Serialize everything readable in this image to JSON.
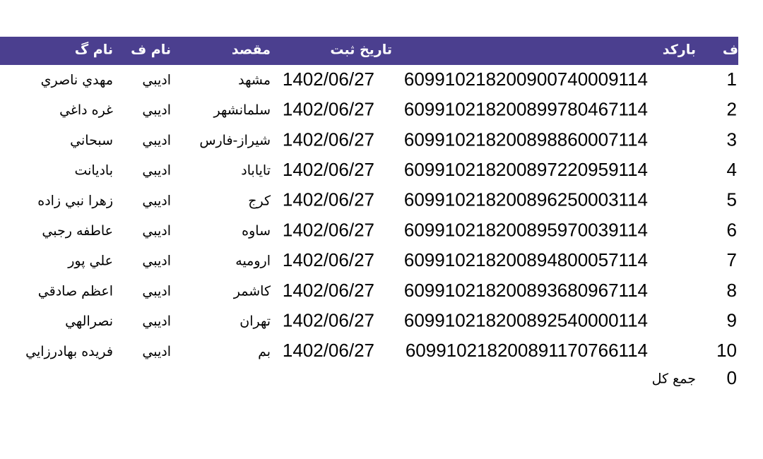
{
  "table": {
    "headers": [
      "ف",
      "بارکد",
      "تاريخ ثبت",
      "مقصد",
      "نام ف",
      "نام گ"
    ],
    "rows": [
      [
        1,
        "609910218200900740009114",
        "1402/06/27",
        "مشهد",
        "اديبي",
        "مهدي ناصري"
      ],
      [
        2,
        "609910218200899780467114",
        "1402/06/27",
        "سلمانشهر",
        "اديبي",
        "غره داغي"
      ],
      [
        3,
        "609910218200898860007114",
        "1402/06/27",
        "شيراز-فارس",
        "اديبي",
        "سبحاني"
      ],
      [
        4,
        "609910218200897220959114",
        "1402/06/27",
        "تاياباد",
        "اديبي",
        "باديانت"
      ],
      [
        5,
        "609910218200896250003114",
        "1402/06/27",
        "کرج",
        "اديبي",
        "زهرا نبي زاده"
      ],
      [
        6,
        "609910218200895970039114",
        "1402/06/27",
        "ساوه",
        "اديبي",
        "عاطفه رجبي"
      ],
      [
        7,
        "609910218200894800057114",
        "1402/06/27",
        "اروميه",
        "اديبي",
        "علي پور"
      ],
      [
        8,
        "609910218200893680967114",
        "1402/06/27",
        "کاشمر",
        "اديبي",
        "اعظم صادقي"
      ],
      [
        9,
        "609910218200892540000114",
        "1402/06/27",
        "تهران",
        "اديبي",
        "نصرالهي"
      ],
      [
        10,
        "609910218200891170766114",
        "1402/06/27",
        "بم",
        "اديبي",
        "فريده بهادرزايي"
      ]
    ],
    "total": {
      "value": 0,
      "label": "جمع کل"
    }
  }
}
